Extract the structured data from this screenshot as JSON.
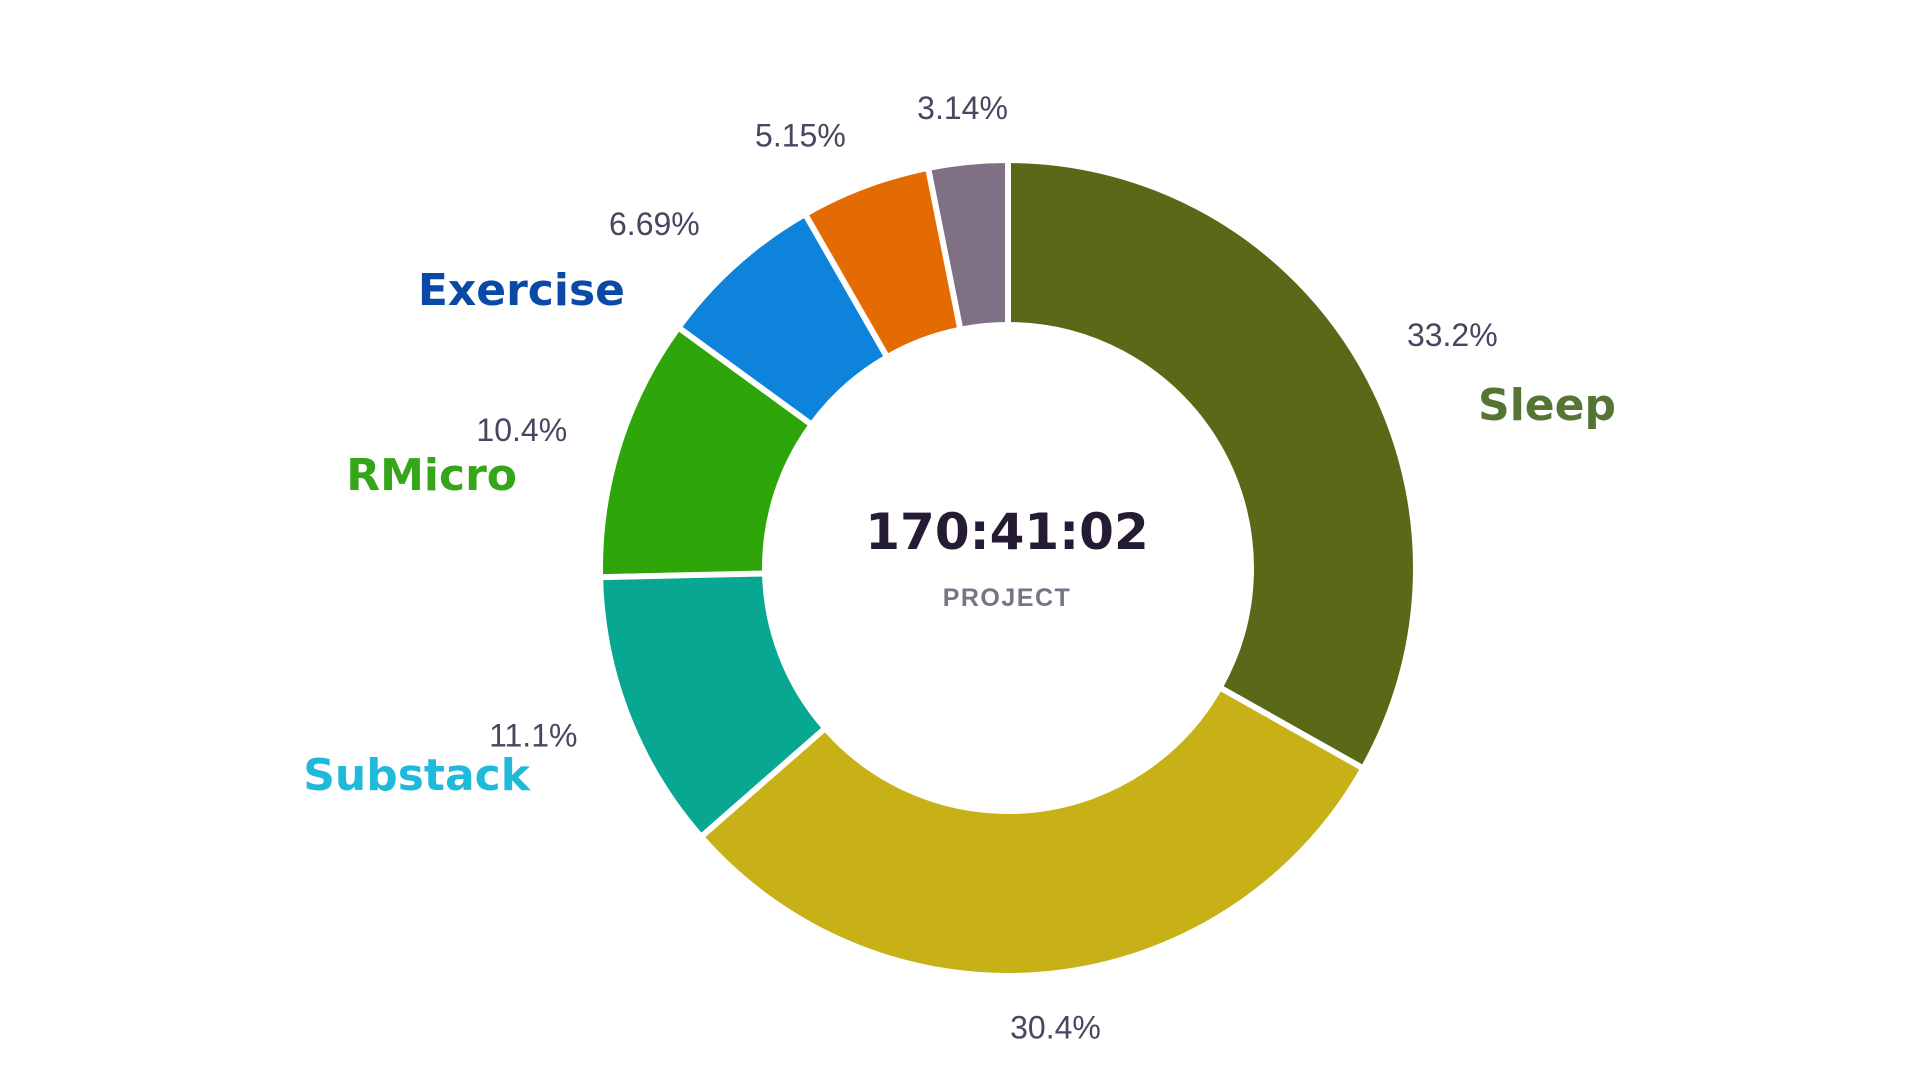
{
  "chart_data": {
    "type": "pie",
    "variant": "donut",
    "center": {
      "value": "170:41:02",
      "caption": "PROJECT"
    },
    "slices": [
      {
        "label": "Sleep",
        "percent_label": "33.2%",
        "value": 33.2,
        "color": "#5a6918",
        "label_color": "#557534"
      },
      {
        "label": "",
        "percent_label": "30.4%",
        "value": 30.4,
        "color": "#c8b116",
        "label_color": ""
      },
      {
        "label": "Substack",
        "percent_label": "11.1%",
        "value": 11.1,
        "color": "#07a792",
        "label_color": "#1fb9dc"
      },
      {
        "label": "RMicro",
        "percent_label": "10.4%",
        "value": 10.4,
        "color": "#2ea508",
        "label_color": "#35a51a"
      },
      {
        "label": "Exercise",
        "percent_label": "6.69%",
        "value": 6.69,
        "color": "#0e83dc",
        "label_color": "#0a4aa6"
      },
      {
        "label": "",
        "percent_label": "5.15%",
        "value": 5.15,
        "color": "#e36b02",
        "label_color": ""
      },
      {
        "label": "",
        "percent_label": "3.14%",
        "value": 3.14,
        "color": "#807085",
        "label_color": ""
      }
    ]
  }
}
